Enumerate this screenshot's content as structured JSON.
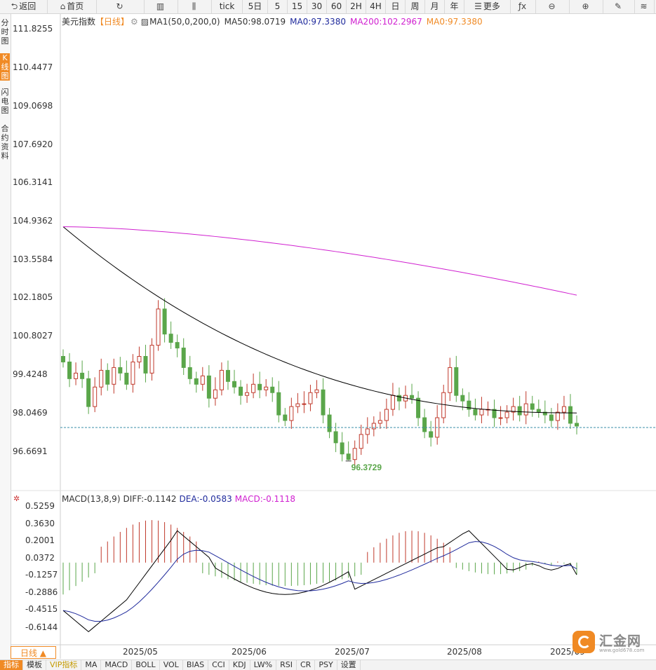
{
  "toolbar": [
    {
      "label": "返回",
      "icon": "back-icon",
      "glyph": "⮌",
      "w": 68
    },
    {
      "label": "首页",
      "icon": "home-icon",
      "glyph": "⌂",
      "w": 70
    },
    {
      "label": "",
      "icon": "refresh-icon",
      "glyph": "↻",
      "w": 68
    },
    {
      "label": "",
      "icon": "bar-chart-icon",
      "glyph": "▥",
      "w": 48
    },
    {
      "label": "",
      "icon": "candlestick-icon",
      "glyph": "⫼",
      "w": 48
    },
    {
      "label": "tick",
      "icon": "",
      "glyph": "",
      "w": 44
    },
    {
      "label": "5日",
      "icon": "",
      "glyph": "",
      "w": 36
    },
    {
      "label": "5",
      "icon": "",
      "glyph": "",
      "w": 28
    },
    {
      "label": "15",
      "icon": "",
      "glyph": "",
      "w": 28
    },
    {
      "label": "30",
      "icon": "",
      "glyph": "",
      "w": 28
    },
    {
      "label": "60",
      "icon": "",
      "glyph": "",
      "w": 28
    },
    {
      "label": "2H",
      "icon": "",
      "glyph": "",
      "w": 28
    },
    {
      "label": "4H",
      "icon": "",
      "glyph": "",
      "w": 28
    },
    {
      "label": "日",
      "icon": "",
      "glyph": "",
      "w": 28
    },
    {
      "label": "周",
      "icon": "",
      "glyph": "",
      "w": 28
    },
    {
      "label": "月",
      "icon": "",
      "glyph": "",
      "w": 28
    },
    {
      "label": "年",
      "icon": "",
      "glyph": "",
      "w": 28
    },
    {
      "label": "更多",
      "icon": "menu-icon",
      "glyph": "☰",
      "w": 66
    },
    {
      "label": "",
      "icon": "function-icon",
      "glyph": "ƒx",
      "w": 36
    },
    {
      "label": "",
      "icon": "zoom-out-icon",
      "glyph": "⊖",
      "w": 48
    },
    {
      "label": "",
      "icon": "zoom-in-icon",
      "glyph": "⊕",
      "w": 48
    },
    {
      "label": "",
      "icon": "pencil-icon",
      "glyph": "✎",
      "w": 45
    },
    {
      "label": "",
      "icon": "layers-icon",
      "glyph": "≋",
      "w": 28
    }
  ],
  "leftnav": [
    {
      "label": "分时图",
      "active": false
    },
    {
      "label": "K线图",
      "active": true
    },
    {
      "label": "闪电图",
      "active": false
    },
    {
      "label": "合约资料",
      "active": false
    }
  ],
  "legend": {
    "title": "美元指数",
    "period": "【日线】",
    "settings_icon": "gear-icon",
    "ma_name": "MA1(50,0,200,0)",
    "ma50": "MA50:98.0719",
    "ma0": "MA0:97.3380",
    "ma200": "MA200:102.2967",
    "ma0b": "MA0:97.3380"
  },
  "macd_legend": {
    "name": "MACD(13,8,9)",
    "diff": "DIFF:-0.1142",
    "dea": "DEA:-0.0583",
    "macd": "MACD:-0.1118"
  },
  "price_axis": [
    "111.8255",
    "110.4477",
    "109.0698",
    "107.6920",
    "106.3141",
    "104.9362",
    "103.5584",
    "102.1805",
    "100.8027",
    "99.4248",
    "98.0469",
    "96.6691"
  ],
  "macd_axis": [
    "0.5259",
    "0.3630",
    "0.2001",
    "0.0372",
    "-0.1257",
    "-0.2886",
    "-0.4515",
    "-0.6144"
  ],
  "x_labels": [
    "2025/05",
    "2025/06",
    "2025/07",
    "2025/08",
    "2025/09"
  ],
  "period_button": "日线 ▲",
  "bottombar": [
    {
      "label": "指标",
      "active": true,
      "vip": false
    },
    {
      "label": "模板",
      "active": false,
      "vip": false
    },
    {
      "label": "VIP指标",
      "active": false,
      "vip": true
    },
    {
      "label": "MA",
      "active": false,
      "vip": false
    },
    {
      "label": "MACD",
      "active": false,
      "vip": false
    },
    {
      "label": "BOLL",
      "active": false,
      "vip": false
    },
    {
      "label": "VOL",
      "active": false,
      "vip": false
    },
    {
      "label": "BIAS",
      "active": false,
      "vip": false
    },
    {
      "label": "CCI",
      "active": false,
      "vip": false
    },
    {
      "label": "KDJ",
      "active": false,
      "vip": false
    },
    {
      "label": "LW%",
      "active": false,
      "vip": false
    },
    {
      "label": "RSI",
      "active": false,
      "vip": false
    },
    {
      "label": "CR",
      "active": false,
      "vip": false
    },
    {
      "label": "PSY",
      "active": false,
      "vip": false
    },
    {
      "label": "设置",
      "active": false,
      "vip": false
    }
  ],
  "low_marker": "96.3729",
  "logo": {
    "name": "汇金网",
    "site": "www.gold678.com"
  },
  "colors": {
    "up": "#c0392b",
    "down": "#5aa64a",
    "ma50": "#000000",
    "ma200": "#d020d0",
    "diff": "#000000",
    "dea": "#1f2a9c",
    "title": "#333333",
    "period": "#f08a24",
    "accent": "#f08a24"
  },
  "chart_data": {
    "type": "candlestick",
    "title": "美元指数",
    "series_closes": [
      99.9,
      99.3,
      99.5,
      99.3,
      98.3,
      99.0,
      99.6,
      99.1,
      99.7,
      99.5,
      99.1,
      99.9,
      100.1,
      99.5,
      100.5,
      101.8,
      100.9,
      100.6,
      100.4,
      99.7,
      99.3,
      99.1,
      99.4,
      98.6,
      98.9,
      99.6,
      99.2,
      99.0,
      98.7,
      98.8,
      99.1,
      98.9,
      99.0,
      98.8,
      98.0,
      97.8,
      98.3,
      98.4,
      98.4,
      98.8,
      98.9,
      98.0,
      97.4,
      97.0,
      96.6,
      96.4,
      96.8,
      97.3,
      97.5,
      97.7,
      97.8,
      98.2,
      98.7,
      98.5,
      98.7,
      98.6,
      97.9,
      97.4,
      97.2,
      97.9,
      98.8,
      99.7,
      98.7,
      98.5,
      98.2,
      98.0,
      98.2,
      98.2,
      97.9,
      97.9,
      98.1,
      98.3,
      98.0,
      98.4,
      98.2,
      98.1,
      98.0,
      97.8,
      98.1,
      98.3,
      97.7,
      97.6
    ],
    "low": 96.3729,
    "ma50_latest": 98.0719,
    "ma200_latest": 102.2967,
    "ylim": [
      96.1,
      112.3
    ],
    "x_labels": [
      "2025/05",
      "2025/06",
      "2025/07",
      "2025/08",
      "2025/09"
    ],
    "macd": {
      "diff_latest": -0.1142,
      "dea_latest": -0.0583,
      "macd_latest": -0.1118,
      "ylim": [
        -0.75,
        0.6
      ]
    }
  }
}
